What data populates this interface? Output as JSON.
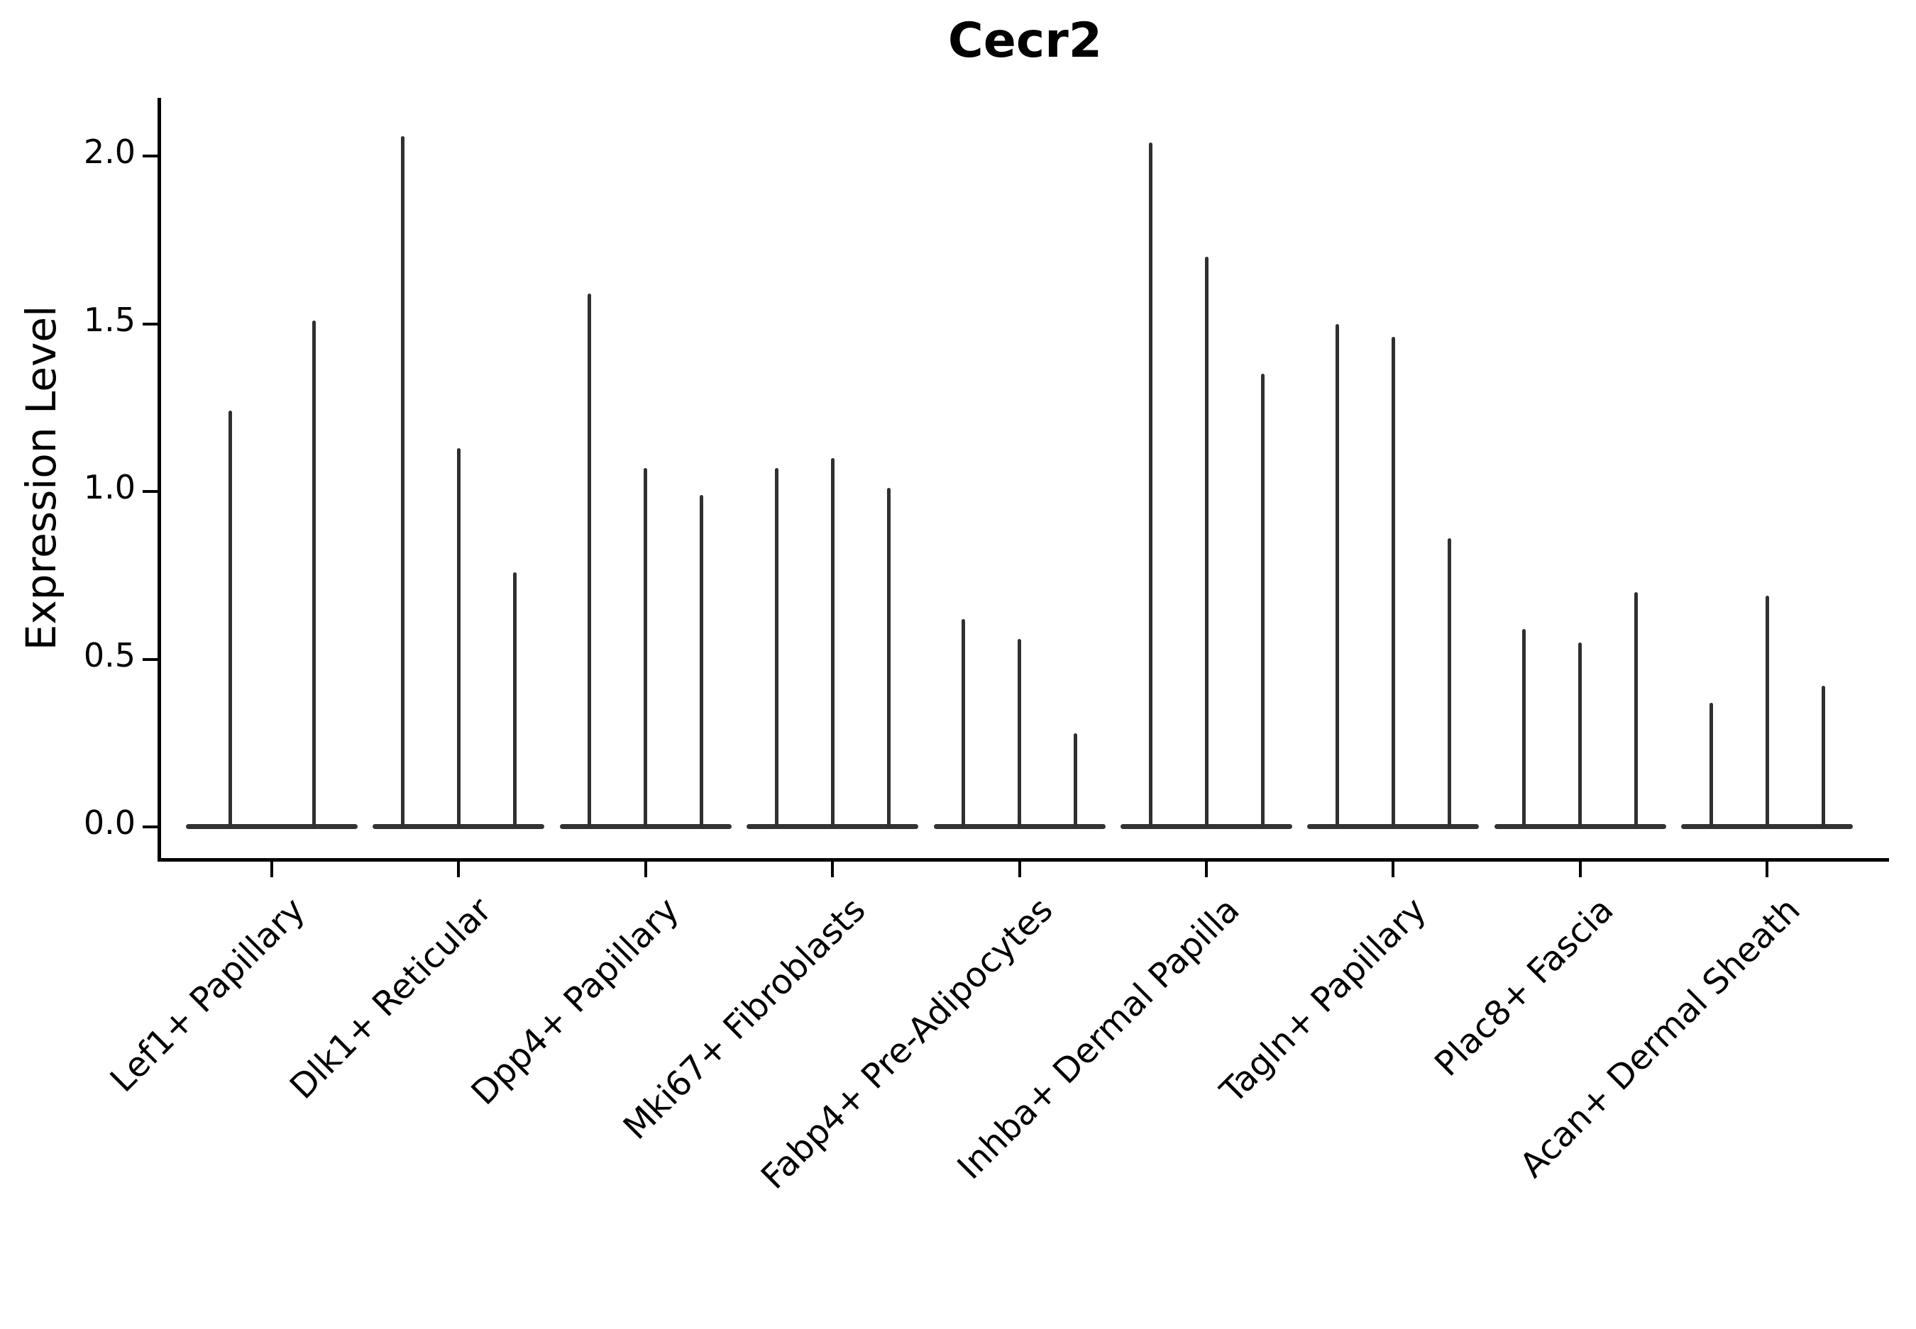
{
  "title": "Cecr2",
  "chart_data": {
    "type": "violin",
    "title": "Cecr2",
    "subtitle": "",
    "xlabel": "",
    "ylabel": "Expression Level",
    "ylim": [
      0,
      2.17
    ],
    "grid": false,
    "legend": "none",
    "ytick_labels": [
      "0.0",
      "0.5",
      "1.0",
      "1.5",
      "2.0"
    ],
    "ytick_values": [
      0.0,
      0.5,
      1.0,
      1.5,
      2.0
    ],
    "categories": [
      "Lef1+ Papillary",
      "Dlk1+ Reticular",
      "Dpp4+ Papillary",
      "Mki67+ Fibroblasts",
      "Fabp4+ Pre-Adipocytes",
      "Inhba+ Dermal Papilla",
      "Tagln+ Papillary",
      "Plac8+ Fascia",
      "Acan+ Dermal Sheath"
    ],
    "groups": [
      {
        "category": "Lef1+ Papillary",
        "violin_max_values": [
          1.24,
          1.51
        ]
      },
      {
        "category": "Dlk1+ Reticular",
        "violin_max_values": [
          2.06,
          1.13,
          0.76
        ]
      },
      {
        "category": "Dpp4+ Papillary",
        "violin_max_values": [
          1.59,
          1.07,
          0.99
        ]
      },
      {
        "category": "Mki67+ Fibroblasts",
        "violin_max_values": [
          1.07,
          1.1,
          1.01
        ]
      },
      {
        "category": "Fabp4+ Pre-Adipocytes",
        "violin_max_values": [
          0.62,
          0.56,
          0.28
        ]
      },
      {
        "category": "Inhba+ Dermal Papilla",
        "violin_max_values": [
          2.04,
          1.7,
          1.35
        ]
      },
      {
        "category": "Tagln+ Papillary",
        "violin_max_values": [
          1.5,
          1.46,
          0.86
        ]
      },
      {
        "category": "Plac8+ Fascia",
        "violin_max_values": [
          0.59,
          0.55,
          0.7
        ]
      },
      {
        "category": "Acan+ Dermal Sheath",
        "violin_max_values": [
          0.37,
          0.69,
          0.42
        ]
      }
    ],
    "annotations": []
  },
  "colors": {
    "background": "#ffffff",
    "violin": "#303030",
    "violin_baseline": "#333333",
    "axis": "#000000",
    "text": "#000000"
  }
}
